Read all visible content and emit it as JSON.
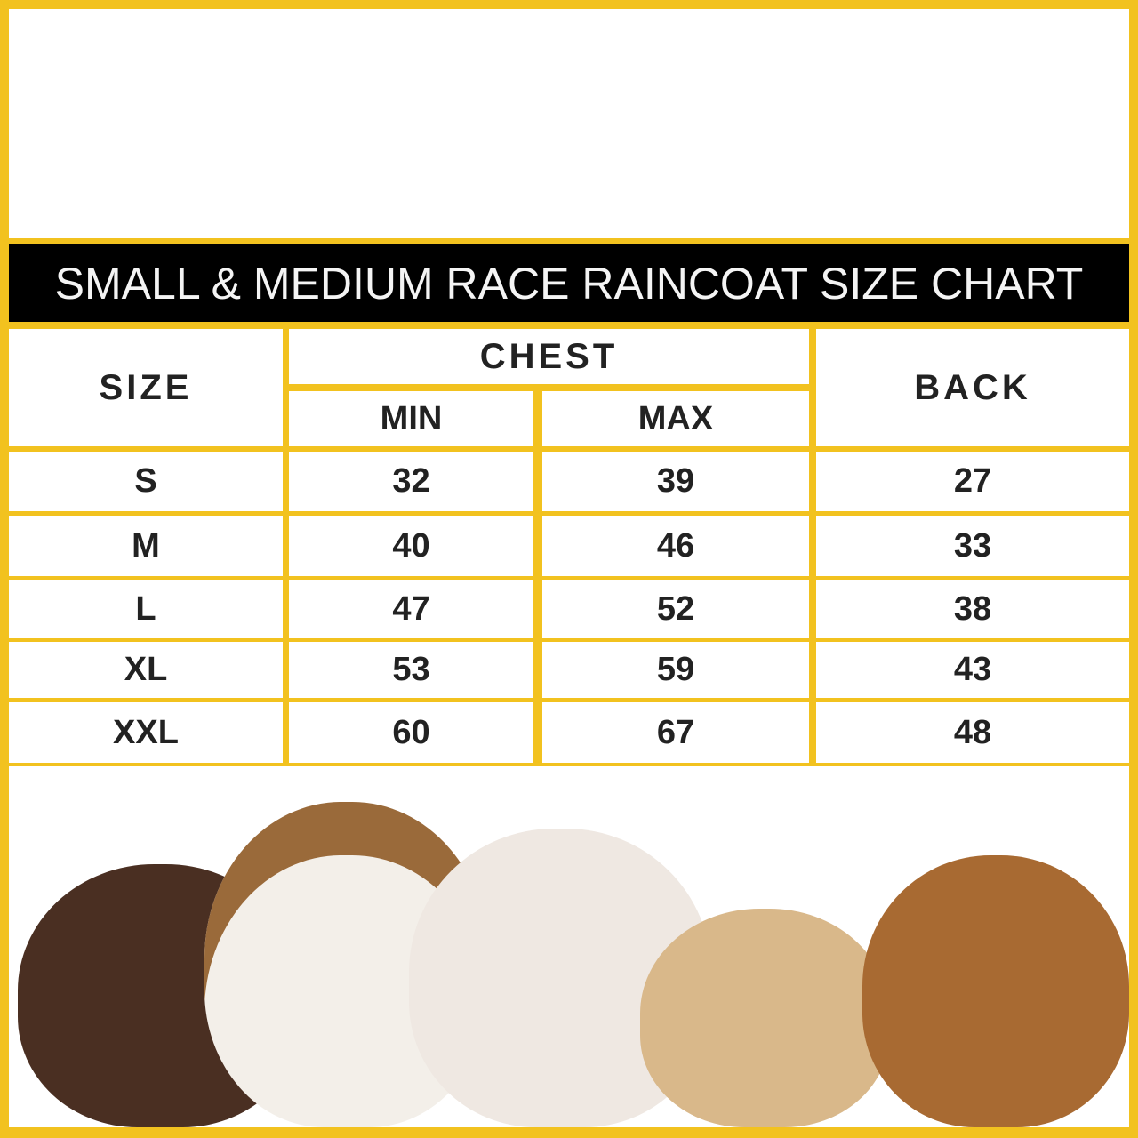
{
  "title": "SMALL & MEDIUM RACE RAINCOAT SIZE CHART",
  "headers": {
    "size": "SIZE",
    "chest": "CHEST",
    "min": "MIN",
    "max": "MAX",
    "back": "BACK"
  },
  "rows": [
    {
      "size": "S",
      "min": "32",
      "max": "39",
      "back": "27"
    },
    {
      "size": "M",
      "min": "40",
      "max": "46",
      "back": "33"
    },
    {
      "size": "L",
      "min": "47",
      "max": "52",
      "back": "38"
    },
    {
      "size": "XL",
      "min": "53",
      "max": "59",
      "back": "43"
    },
    {
      "size": "XXL",
      "min": "60",
      "max": "67",
      "back": "48"
    }
  ],
  "colors": {
    "border": "#f2c21f",
    "band": "#000000",
    "text": "#222222"
  }
}
